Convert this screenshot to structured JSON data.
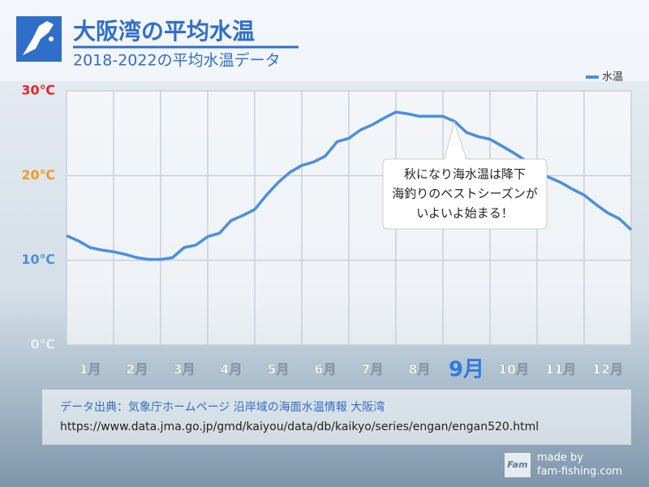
{
  "chart_data": {
    "type": "line",
    "title": "大阪湾の平均水温",
    "subtitle": "2018-2022の平均水温データ",
    "x": [
      1,
      1.25,
      1.5,
      1.75,
      2,
      2.25,
      2.5,
      2.75,
      3,
      3.25,
      3.5,
      3.75,
      4,
      4.25,
      4.5,
      4.75,
      5,
      5.25,
      5.5,
      5.75,
      6,
      6.25,
      6.5,
      6.75,
      7,
      7.25,
      7.5,
      7.75,
      8,
      8.25,
      8.5,
      8.75,
      9,
      9.25,
      9.5,
      9.75,
      10,
      10.25,
      10.5,
      10.75,
      11,
      11.25,
      11.5,
      11.75,
      12,
      12.25,
      12.5,
      12.75,
      13
    ],
    "series": [
      {
        "name": "水温",
        "color": "#4a8fe0",
        "values": [
          12.9,
          12.3,
          11.5,
          11.2,
          11.0,
          10.7,
          10.3,
          10.1,
          10.1,
          10.3,
          11.5,
          11.8,
          12.8,
          13.2,
          14.7,
          15.3,
          16.0,
          17.7,
          19.2,
          20.4,
          21.2,
          21.6,
          22.3,
          24.0,
          24.4,
          25.4,
          26.0,
          26.8,
          27.5,
          27.3,
          27.0,
          27.0,
          27.0,
          26.4,
          25.1,
          24.6,
          24.3,
          23.5,
          22.7,
          21.8,
          20.6,
          19.8,
          19.2,
          18.4,
          17.7,
          16.6,
          15.6,
          14.9,
          13.6
        ]
      }
    ],
    "xlim": [
      1,
      13
    ],
    "xticks": [
      {
        "value": 1,
        "label": "1月"
      },
      {
        "value": 2,
        "label": "2月"
      },
      {
        "value": 3,
        "label": "3月"
      },
      {
        "value": 4,
        "label": "4月"
      },
      {
        "value": 5,
        "label": "5月"
      },
      {
        "value": 6,
        "label": "6月"
      },
      {
        "value": 7,
        "label": "7月"
      },
      {
        "value": 8,
        "label": "8月"
      },
      {
        "value": 9,
        "label": "9月"
      },
      {
        "value": 10,
        "label": "10月"
      },
      {
        "value": 11,
        "label": "11月"
      },
      {
        "value": 12,
        "label": "12月"
      }
    ],
    "highlight_xtick": 8,
    "highlight_color": "#2f7be0",
    "ylim": [
      0,
      30
    ],
    "yticks": [
      {
        "value": 0,
        "label": "0℃"
      },
      {
        "value": 10,
        "label": "10℃"
      },
      {
        "value": 20,
        "label": "20℃"
      },
      {
        "value": 30,
        "label": "30℃"
      }
    ],
    "ytick_colors": [
      "#e8edf2",
      "#4a8fe0",
      "#f39a1e",
      "#e8242a"
    ],
    "grid": true,
    "legend_position": "upper right",
    "annotation": [
      "秋になり海水温は降下",
      "海釣りのベストシーズンが",
      "いよいよ始まる！"
    ],
    "source": [
      "データ出典：気象庁ホームページ 沿岸域の海面水温情報 大阪湾",
      "https://www.data.jma.go.jp/gmd/kaiyou/data/db/kaikyo/series/engan/engan520.html"
    ],
    "credit": {
      "logo": "Fam",
      "line1": "made by",
      "line2": "fam-fishing.com"
    }
  }
}
